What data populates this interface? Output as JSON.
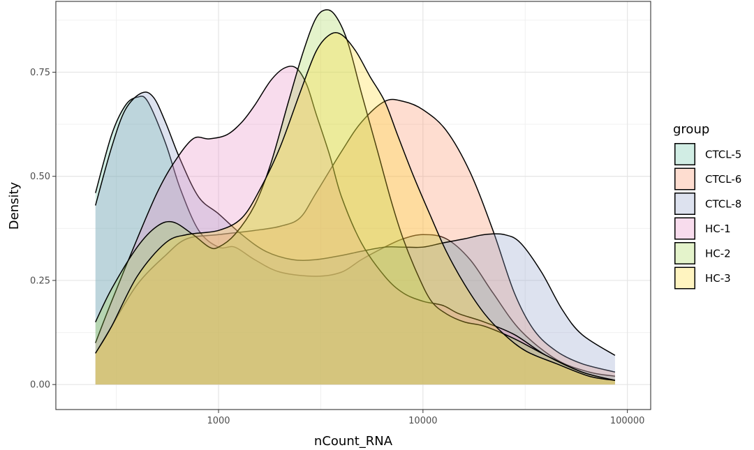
{
  "chart_data": {
    "type": "area",
    "xlabel": "nCount_RNA",
    "ylabel": "Density",
    "x_scale": "log10",
    "xlim": [
      160,
      130000
    ],
    "ylim": [
      -0.06,
      0.92
    ],
    "x_ticks": [
      1000,
      10000,
      100000
    ],
    "x_tick_labels": [
      "1000",
      "10000",
      "100000"
    ],
    "y_ticks": [
      0,
      0.25,
      0.5,
      0.75
    ],
    "y_tick_labels": [
      "0.00",
      "0.25",
      "0.50",
      "0.75"
    ],
    "grid": true,
    "legend": {
      "title": "group",
      "position": "right"
    },
    "series": [
      {
        "name": "CTCL-5",
        "color": "#66c2a5",
        "points": [
          [
            250,
            0.46
          ],
          [
            300,
            0.6
          ],
          [
            350,
            0.67
          ],
          [
            400,
            0.69
          ],
          [
            450,
            0.68
          ],
          [
            550,
            0.58
          ],
          [
            650,
            0.47
          ],
          [
            800,
            0.37
          ],
          [
            1000,
            0.33
          ],
          [
            1200,
            0.33
          ],
          [
            1500,
            0.3
          ],
          [
            2000,
            0.27
          ],
          [
            3000,
            0.26
          ],
          [
            4000,
            0.27
          ],
          [
            5000,
            0.3
          ],
          [
            6500,
            0.33
          ],
          [
            8000,
            0.35
          ],
          [
            10000,
            0.36
          ],
          [
            13000,
            0.35
          ],
          [
            17000,
            0.3
          ],
          [
            22000,
            0.22
          ],
          [
            30000,
            0.13
          ],
          [
            45000,
            0.06
          ],
          [
            65000,
            0.03
          ],
          [
            87000,
            0.02
          ]
        ]
      },
      {
        "name": "CTCL-6",
        "color": "#fc8d62",
        "points": [
          [
            250,
            0.075
          ],
          [
            300,
            0.14
          ],
          [
            400,
            0.24
          ],
          [
            550,
            0.31
          ],
          [
            700,
            0.35
          ],
          [
            1000,
            0.36
          ],
          [
            1500,
            0.37
          ],
          [
            2000,
            0.38
          ],
          [
            2500,
            0.4
          ],
          [
            3000,
            0.46
          ],
          [
            4000,
            0.56
          ],
          [
            5000,
            0.63
          ],
          [
            6500,
            0.68
          ],
          [
            8000,
            0.68
          ],
          [
            10000,
            0.66
          ],
          [
            13000,
            0.61
          ],
          [
            17000,
            0.51
          ],
          [
            22000,
            0.37
          ],
          [
            28000,
            0.22
          ],
          [
            35000,
            0.13
          ],
          [
            45000,
            0.08
          ],
          [
            60000,
            0.05
          ],
          [
            87000,
            0.03
          ]
        ]
      },
      {
        "name": "CTCL-8",
        "color": "#8da0cb",
        "points": [
          [
            250,
            0.43
          ],
          [
            300,
            0.57
          ],
          [
            350,
            0.66
          ],
          [
            420,
            0.7
          ],
          [
            480,
            0.69
          ],
          [
            550,
            0.63
          ],
          [
            650,
            0.54
          ],
          [
            800,
            0.45
          ],
          [
            1000,
            0.41
          ],
          [
            1300,
            0.36
          ],
          [
            1700,
            0.32
          ],
          [
            2300,
            0.3
          ],
          [
            3000,
            0.3
          ],
          [
            4000,
            0.31
          ],
          [
            5000,
            0.32
          ],
          [
            6500,
            0.33
          ],
          [
            8000,
            0.33
          ],
          [
            10000,
            0.33
          ],
          [
            12500,
            0.34
          ],
          [
            16000,
            0.35
          ],
          [
            20000,
            0.36
          ],
          [
            25000,
            0.36
          ],
          [
            30000,
            0.34
          ],
          [
            38000,
            0.27
          ],
          [
            48000,
            0.18
          ],
          [
            60000,
            0.12
          ],
          [
            87000,
            0.07
          ]
        ]
      },
      {
        "name": "HC-1",
        "color": "#e78ac3",
        "points": [
          [
            250,
            0.1
          ],
          [
            300,
            0.2
          ],
          [
            400,
            0.35
          ],
          [
            500,
            0.46
          ],
          [
            600,
            0.53
          ],
          [
            750,
            0.59
          ],
          [
            900,
            0.59
          ],
          [
            1100,
            0.6
          ],
          [
            1300,
            0.63
          ],
          [
            1500,
            0.67
          ],
          [
            1800,
            0.73
          ],
          [
            2100,
            0.76
          ],
          [
            2400,
            0.76
          ],
          [
            2700,
            0.72
          ],
          [
            3000,
            0.65
          ],
          [
            3500,
            0.55
          ],
          [
            4000,
            0.45
          ],
          [
            5000,
            0.34
          ],
          [
            6500,
            0.26
          ],
          [
            8000,
            0.22
          ],
          [
            10000,
            0.2
          ],
          [
            12500,
            0.19
          ],
          [
            15000,
            0.17
          ],
          [
            20000,
            0.15
          ],
          [
            28000,
            0.12
          ],
          [
            40000,
            0.07
          ],
          [
            60000,
            0.03
          ],
          [
            87000,
            0.01
          ]
        ]
      },
      {
        "name": "HC-2",
        "color": "#a6d854",
        "points": [
          [
            250,
            0.15
          ],
          [
            300,
            0.23
          ],
          [
            400,
            0.33
          ],
          [
            500,
            0.38
          ],
          [
            600,
            0.39
          ],
          [
            750,
            0.36
          ],
          [
            900,
            0.33
          ],
          [
            1000,
            0.33
          ],
          [
            1200,
            0.36
          ],
          [
            1500,
            0.43
          ],
          [
            1800,
            0.53
          ],
          [
            2200,
            0.68
          ],
          [
            2600,
            0.8
          ],
          [
            3000,
            0.88
          ],
          [
            3400,
            0.9
          ],
          [
            3800,
            0.88
          ],
          [
            4300,
            0.82
          ],
          [
            5000,
            0.7
          ],
          [
            6000,
            0.56
          ],
          [
            7000,
            0.44
          ],
          [
            8000,
            0.35
          ],
          [
            9500,
            0.26
          ],
          [
            11000,
            0.2
          ],
          [
            13000,
            0.17
          ],
          [
            16000,
            0.15
          ],
          [
            20000,
            0.14
          ],
          [
            28000,
            0.11
          ],
          [
            40000,
            0.07
          ],
          [
            60000,
            0.03
          ],
          [
            87000,
            0.01
          ]
        ]
      },
      {
        "name": "HC-3",
        "color": "#ffd92f",
        "points": [
          [
            250,
            0.075
          ],
          [
            300,
            0.14
          ],
          [
            400,
            0.26
          ],
          [
            550,
            0.34
          ],
          [
            700,
            0.36
          ],
          [
            1000,
            0.37
          ],
          [
            1300,
            0.4
          ],
          [
            1600,
            0.47
          ],
          [
            2000,
            0.57
          ],
          [
            2500,
            0.7
          ],
          [
            3000,
            0.8
          ],
          [
            3500,
            0.84
          ],
          [
            4000,
            0.84
          ],
          [
            4700,
            0.8
          ],
          [
            5500,
            0.74
          ],
          [
            6500,
            0.68
          ],
          [
            7500,
            0.6
          ],
          [
            9000,
            0.5
          ],
          [
            11000,
            0.4
          ],
          [
            13000,
            0.32
          ],
          [
            16000,
            0.24
          ],
          [
            20000,
            0.17
          ],
          [
            25000,
            0.12
          ],
          [
            32000,
            0.08
          ],
          [
            45000,
            0.05
          ],
          [
            65000,
            0.02
          ],
          [
            87000,
            0.01
          ]
        ]
      }
    ]
  }
}
